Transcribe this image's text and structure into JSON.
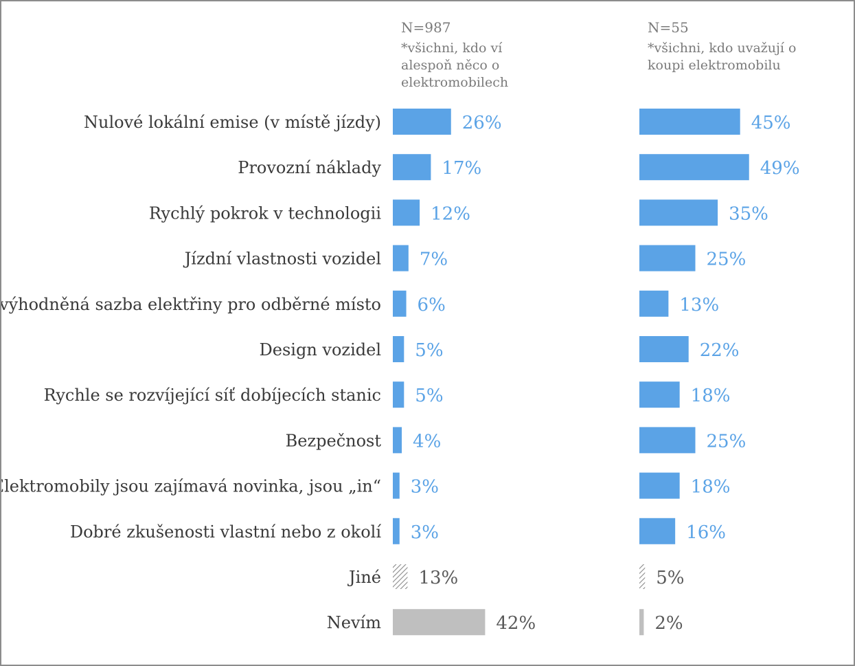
{
  "chart_data": {
    "type": "bar",
    "orientation": "horizontal",
    "categories": [
      "Nulové lokální emise (v místě jízdy)",
      "Provozní náklady",
      "Rychlý pokrok v technologii",
      "Jízdní vlastnosti vozidel",
      "Zvýhodněná sazba elektřiny pro odběrné místo",
      "Design vozidel",
      "Rychle se rozvíjející síť dobíjecích stanic",
      "Bezpečnost",
      "Elektromobily jsou zajímavá novinka, jsou „in“",
      "Dobré zkušenosti vlastní nebo z okolí",
      "Jiné",
      "Nevím"
    ],
    "category_styles": [
      "solid",
      "solid",
      "solid",
      "solid",
      "solid",
      "solid",
      "solid",
      "solid",
      "solid",
      "solid",
      "hatched",
      "gray"
    ],
    "series": [
      {
        "n_label": "N=987",
        "note_lines": [
          "*všichni, kdo ví",
          "alespoň něco o",
          "elektromobilech"
        ],
        "values": [
          26,
          17,
          12,
          7,
          6,
          5,
          5,
          4,
          3,
          3,
          13,
          42
        ],
        "value_labels": [
          "26%",
          "17%",
          "12%",
          "7%",
          "6%",
          "5%",
          "5%",
          "4%",
          "3%",
          "3%",
          "13%",
          "42%"
        ]
      },
      {
        "n_label": "N=55",
        "note_lines": [
          "*všichni, kdo uvažují o",
          "koupi elektromobilu"
        ],
        "values": [
          45,
          49,
          35,
          25,
          13,
          22,
          18,
          25,
          18,
          16,
          5,
          2
        ],
        "value_labels": [
          "45%",
          "49%",
          "35%",
          "25%",
          "13%",
          "22%",
          "18%",
          "25%",
          "18%",
          "16%",
          "5%",
          "2%"
        ]
      }
    ],
    "colors": {
      "bar": "#5ba3e6",
      "bar_label": "#5ba3e6",
      "hatch": "#8a8a8a",
      "gray_bar": "#bfbfbf",
      "other_label": "#595959"
    },
    "xlim": [
      0,
      100
    ],
    "grid": false,
    "legend": "none"
  }
}
